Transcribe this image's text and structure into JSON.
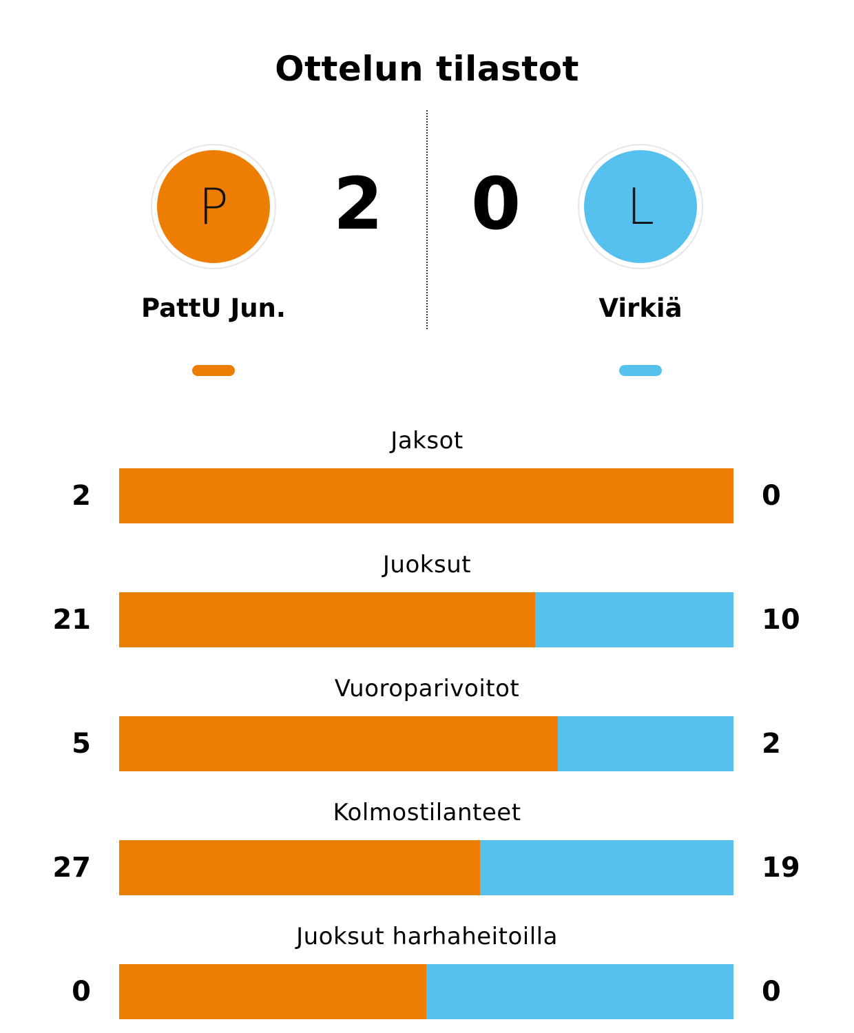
{
  "title": "Ottelun tilastot",
  "colors": {
    "home": "#EE7D03",
    "away": "#56C1EF"
  },
  "home": {
    "name": "PattU Jun.",
    "logo_letter": "P",
    "score": "2"
  },
  "away": {
    "name": "Virkiä",
    "logo_letter": "L",
    "score": "0"
  },
  "stats": [
    {
      "label": "Jaksot",
      "home": "2",
      "away": "0"
    },
    {
      "label": "Juoksut",
      "home": "21",
      "away": "10"
    },
    {
      "label": "Vuoroparivoitot",
      "home": "5",
      "away": "2"
    },
    {
      "label": "Kolmostilanteet",
      "home": "27",
      "away": "19"
    },
    {
      "label": "Juoksut harhaheitoilla",
      "home": "0",
      "away": "0"
    }
  ]
}
